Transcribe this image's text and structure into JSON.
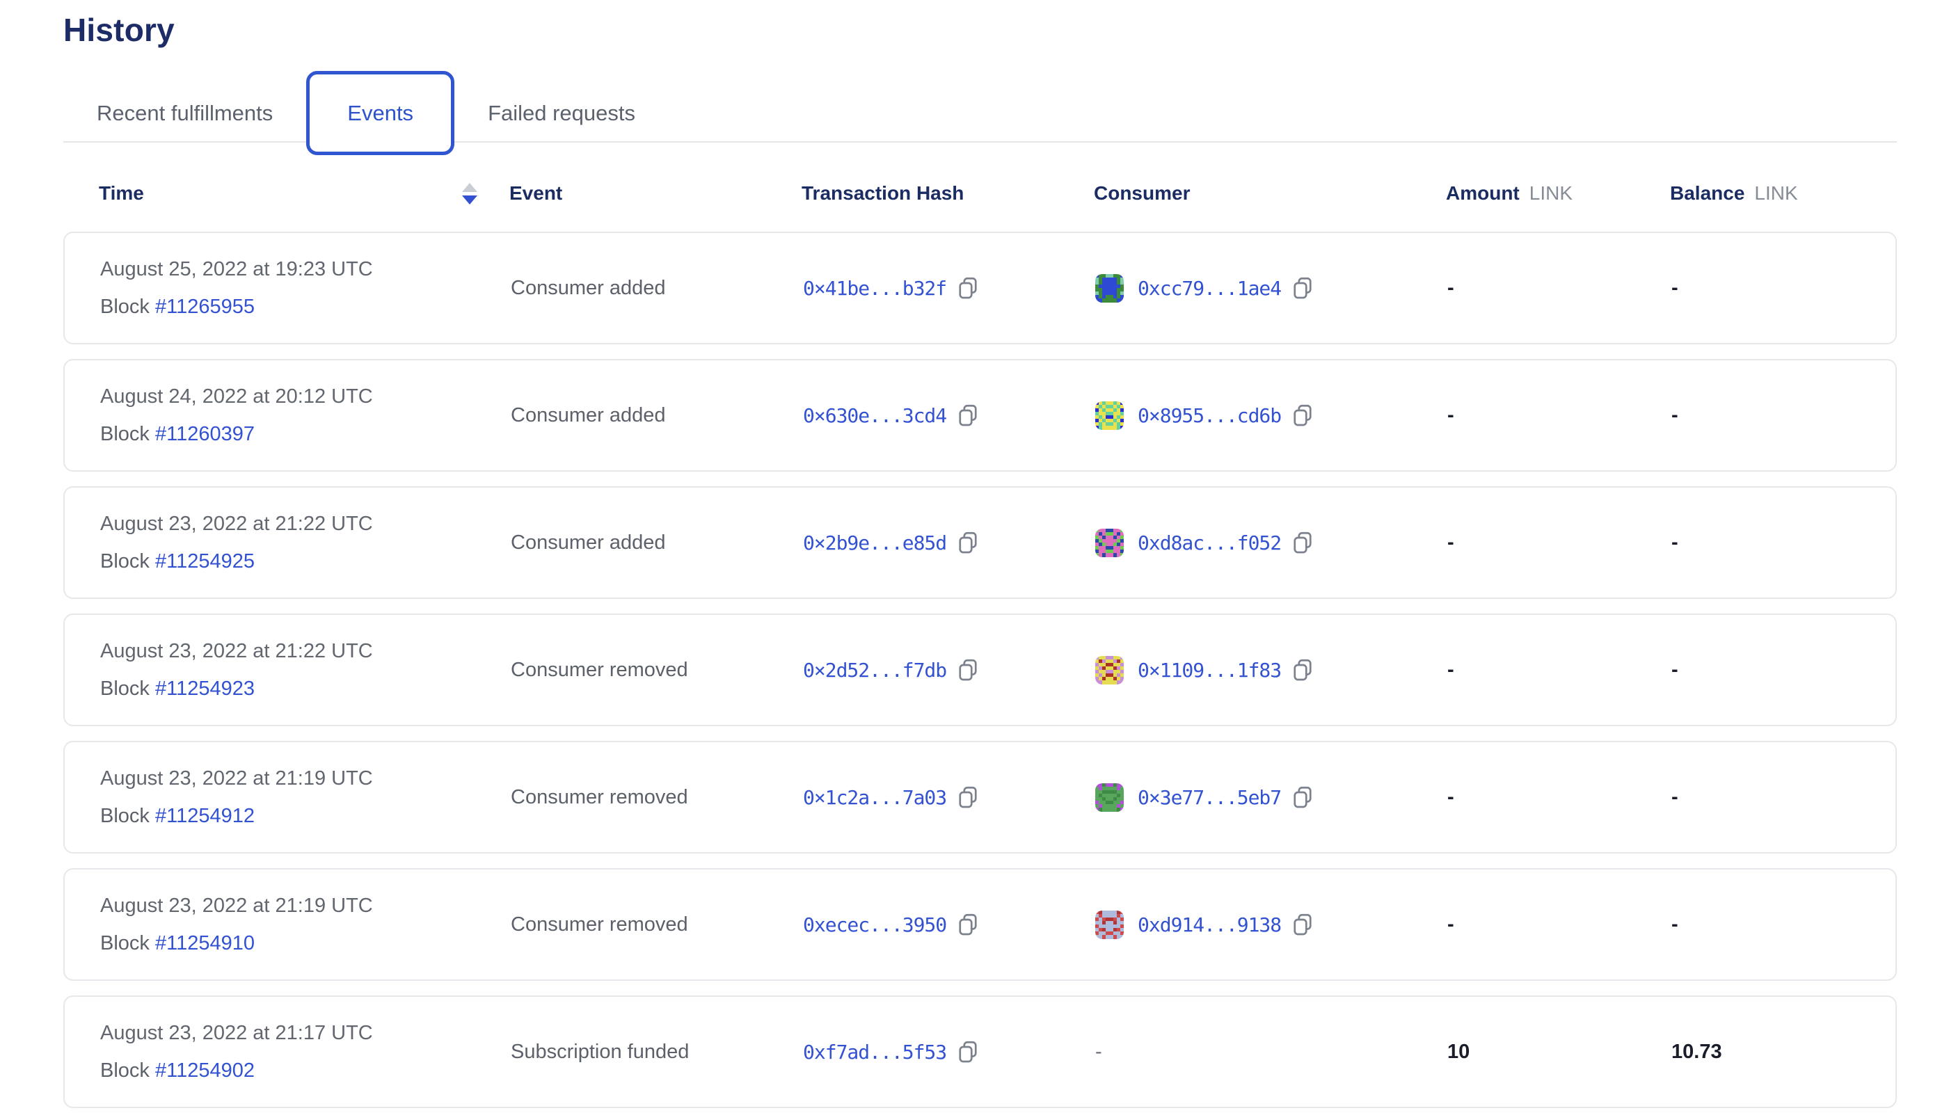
{
  "page": {
    "title": "History"
  },
  "colors": {
    "accent_blue": "#2f55d0",
    "link_blue": "#3252d2",
    "heading_navy": "#1b2c63",
    "muted_gray": "#5b6069",
    "card_border": "#e6e8ec",
    "sort_inactive": "#c9cdd4",
    "copy_icon_gray": "#7b828d"
  },
  "tabs": [
    {
      "label": "Recent fulfillments",
      "active": false
    },
    {
      "label": "Events",
      "active": true
    },
    {
      "label": "Failed requests",
      "active": false
    }
  ],
  "table": {
    "columns": {
      "time": "Time",
      "event": "Event",
      "tx": "Transaction Hash",
      "consumer": "Consumer",
      "amount": "Amount",
      "balance": "Balance",
      "unit": "LINK"
    },
    "sort": {
      "column": "time",
      "direction": "desc"
    },
    "block_label": "Block",
    "rows": [
      {
        "date": "August 25, 2022 at 19:23 UTC",
        "block": "#11265955",
        "event": "Consumer added",
        "tx": "0×41be...b32f",
        "consumer": "0xcc79...1ae4",
        "identicon": {
          "bg": "#3d8a3b",
          "fg": "#2e49d3",
          "spot": "#7fccae",
          "pattern": [
            "10022001",
            "20111102",
            "20111102",
            "01111110",
            "00111100",
            "20111102",
            "10100101",
            "11000011"
          ]
        },
        "amount": "-",
        "balance": "-"
      },
      {
        "date": "August 24, 2022 at 20:12 UTC",
        "block": "#11260397",
        "event": "Consumer added",
        "tx": "0×630e...3cd4",
        "consumer": "0×8955...cd6b",
        "identicon": {
          "bg": "#2a2fd4",
          "fg": "#e9e24e",
          "spot": "#63d29c",
          "pattern": [
            "01211210",
            "12122121",
            "01211210",
            "21122112",
            "12100121",
            "01211210",
            "12122121",
            "02111120"
          ]
        },
        "amount": "-",
        "balance": "-"
      },
      {
        "date": "August 23, 2022 at 21:22 UTC",
        "block": "#11254925",
        "event": "Consumer added",
        "tx": "0×2b9e...e85d",
        "consumer": "0xd8ac...f052",
        "identicon": {
          "bg": "#6fca51",
          "fg": "#e06cbe",
          "spot": "#2b4aa8",
          "pattern": [
            "01122110",
            "12100121",
            "01211210",
            "20111102",
            "12011021",
            "01122110",
            "21100112",
            "01211210"
          ]
        },
        "amount": "-",
        "balance": "-"
      },
      {
        "date": "August 23, 2022 at 21:22 UTC",
        "block": "#11254923",
        "event": "Consumer removed",
        "tx": "0×2d52...f7db",
        "consumer": "0×1109...1f83",
        "identicon": {
          "bg": "#c98fd6",
          "fg": "#e4dd52",
          "spot": "#ab3227",
          "pattern": [
            "01100110",
            "12011021",
            "01122110",
            "10211201",
            "01100110",
            "10122101",
            "01211210",
            "00111100"
          ]
        },
        "amount": "-",
        "balance": "-"
      },
      {
        "date": "August 23, 2022 at 21:19 UTC",
        "block": "#11254912",
        "event": "Consumer removed",
        "tx": "0×1c2a...7a03",
        "consumer": "0×3e77...5eb7",
        "identicon": {
          "bg": "#57a65c",
          "fg": "#b14fd8",
          "spot": "#3f8a46",
          "pattern": [
            "11211211",
            "01000010",
            "00222200",
            "02000020",
            "00200200",
            "10022001",
            "01000010",
            "12000021"
          ]
        },
        "amount": "-",
        "balance": "-"
      },
      {
        "date": "August 23, 2022 at 21:19 UTC",
        "block": "#11254910",
        "event": "Consumer removed",
        "tx": "0xecec...3950",
        "consumer": "0xd914...9138",
        "identicon": {
          "bg": "#cf4b4b",
          "fg": "#aebbdc",
          "spot": "#b23434",
          "pattern": [
            "02111120",
            "10111101",
            "01022010",
            "11211211",
            "01111110",
            "10211201",
            "01100110",
            "11011011"
          ]
        },
        "amount": "-",
        "balance": "-"
      },
      {
        "date": "August 23, 2022 at 21:17 UTC",
        "block": "#11254902",
        "event": "Subscription funded",
        "tx": "0xf7ad...5f53",
        "consumer": null,
        "consumer_placeholder": "-",
        "identicon": null,
        "amount": "10",
        "balance": "10.73"
      }
    ]
  }
}
